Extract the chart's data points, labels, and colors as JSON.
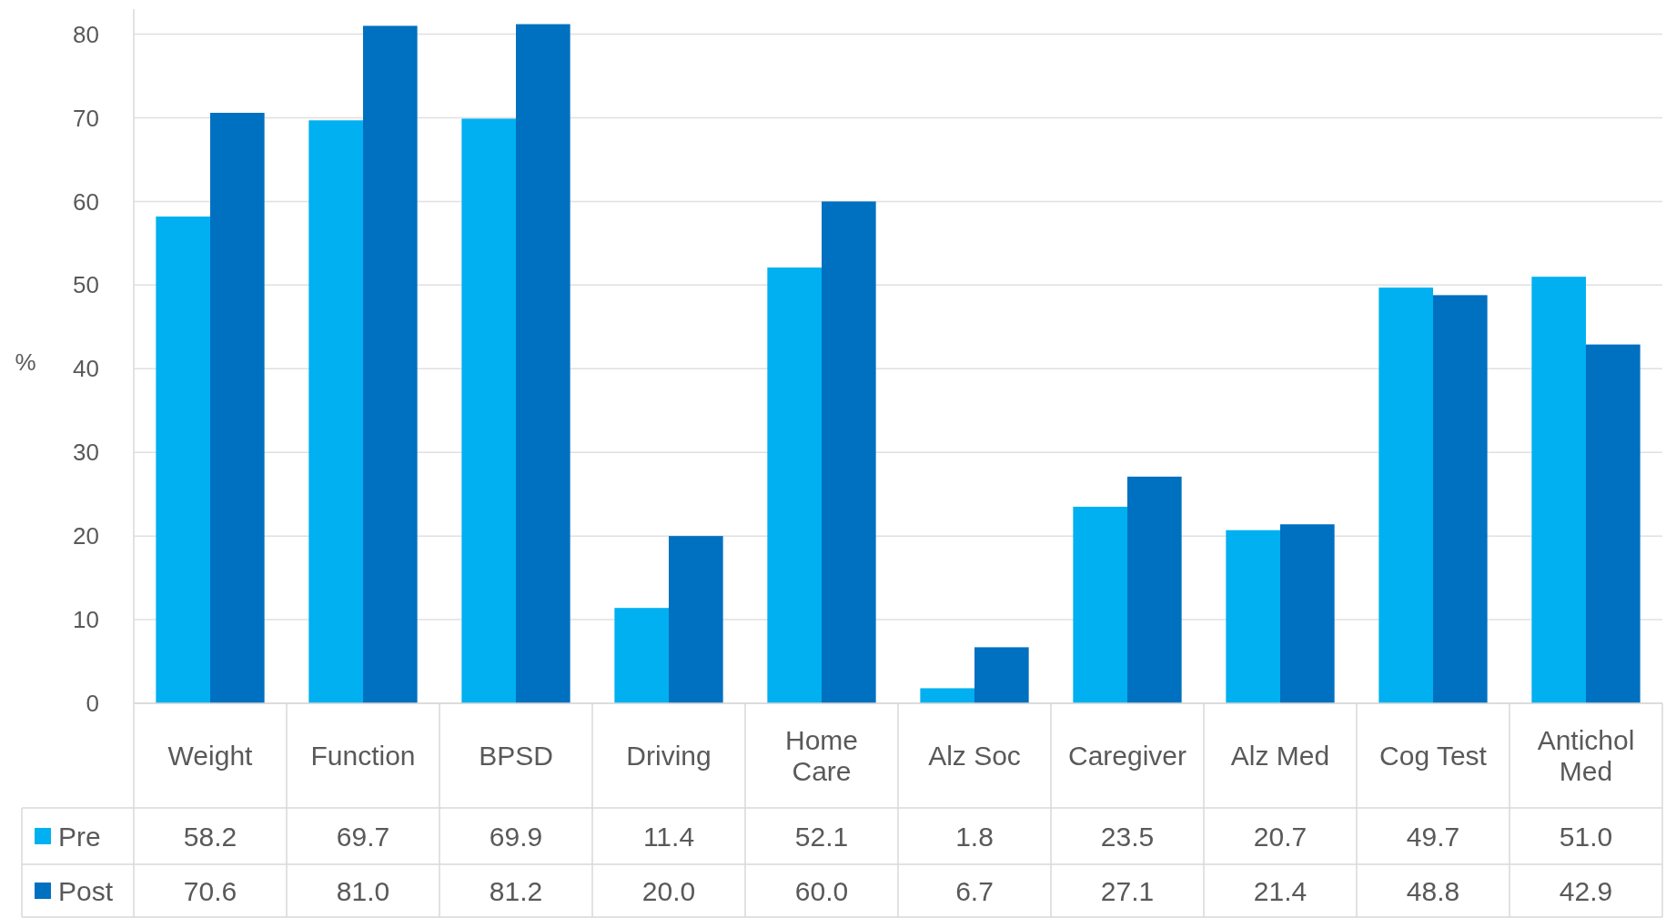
{
  "chart_data": {
    "type": "bar",
    "ylabel": "%",
    "categories": [
      "Weight",
      "Function",
      "BPSD",
      "Driving",
      "Home Care",
      "Alz Soc",
      "Caregiver",
      "Alz Med",
      "Cog Test",
      "Antichol Med"
    ],
    "series": [
      {
        "name": "Pre",
        "color": "#00b0f0",
        "values": [
          58.2,
          69.7,
          69.9,
          11.4,
          52.1,
          1.8,
          23.5,
          20.7,
          49.7,
          51.0
        ],
        "value_labels": [
          "58.2",
          "69.7",
          "69.9",
          "11.4",
          "52.1",
          "1.8",
          "23.5",
          "20.7",
          "49.7",
          "51.0"
        ]
      },
      {
        "name": "Post",
        "color": "#0070c0",
        "values": [
          70.6,
          81.0,
          81.2,
          20.0,
          60.0,
          6.7,
          27.1,
          21.4,
          48.8,
          42.9
        ],
        "value_labels": [
          "70.6",
          "81.0",
          "81.2",
          "20.0",
          "60.0",
          "6.7",
          "27.1",
          "21.4",
          "48.8",
          "42.9"
        ]
      }
    ],
    "ylim": [
      0,
      83
    ],
    "yticks": [
      0,
      10,
      20,
      30,
      40,
      50,
      60,
      70,
      80
    ],
    "grid": "y",
    "legend": "bottom"
  }
}
